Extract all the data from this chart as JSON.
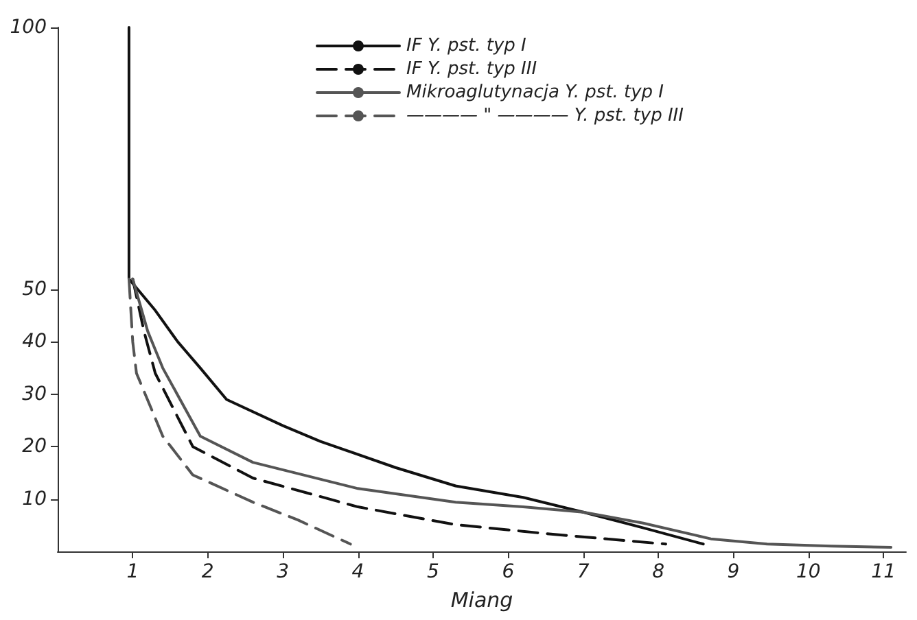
{
  "chart_data": {
    "type": "line",
    "xlabel": "Miang",
    "xlim": [
      0,
      11.3
    ],
    "xticks": [
      1,
      2,
      3,
      4,
      5,
      6,
      7,
      8,
      9,
      10,
      11
    ],
    "ylim": [
      0,
      100
    ],
    "yticks": [
      10,
      20,
      30,
      40,
      50,
      100
    ],
    "grid": false,
    "legend": "top",
    "marker": "none",
    "series": [
      {
        "name": "IF Y. pst. typ I",
        "color": "#111111",
        "line_style": "solid",
        "x": [
          0.95,
          0.95,
          1.3,
          1.6,
          1.9,
          2.25,
          3,
          3.5,
          4.5,
          5.3,
          6.2,
          7,
          7.8,
          8.6
        ],
        "values": [
          100,
          52,
          46,
          40,
          35,
          29,
          24,
          21,
          16,
          12.5,
          10.3,
          7.5,
          4.5,
          1.4
        ]
      },
      {
        "name": "IF Y. pst. typ III",
        "color": "#111111",
        "line_style": "dashed",
        "x": [
          1,
          1.15,
          1.3,
          1.8,
          2.6,
          4,
          5.3,
          6.5,
          8.1
        ],
        "values": [
          52,
          42,
          34,
          20,
          14,
          8.5,
          5.1,
          3.4,
          1.4
        ]
      },
      {
        "name": "Mikroaglutynacja Y. pst. typ I",
        "color": "#555555",
        "line_style": "solid",
        "x": [
          1,
          1.2,
          1.4,
          1.9,
          2.6,
          4,
          5.3,
          6.2,
          7,
          7.8,
          8.7,
          9.45,
          10.3,
          11.1
        ],
        "values": [
          52,
          42,
          35,
          22,
          17,
          12,
          9.4,
          8.5,
          7.5,
          5.4,
          2.4,
          1.4,
          1,
          0.8
        ]
      },
      {
        "name": "———— \" ———— Y. pst. typ III",
        "color": "#555555",
        "line_style": "dashed",
        "x": [
          0.95,
          1,
          1.05,
          1.4,
          1.8,
          2.6,
          3.2,
          3.9
        ],
        "values": [
          52,
          40,
          34,
          22,
          14.6,
          9.4,
          6,
          1.4
        ]
      }
    ]
  }
}
